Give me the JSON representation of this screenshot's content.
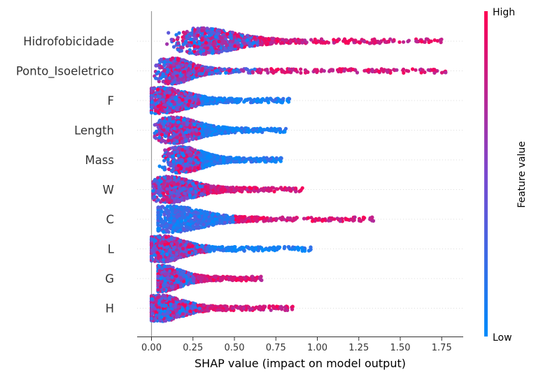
{
  "chart_data": {
    "type": "scatter",
    "subtype": "shap-beeswarm",
    "xlabel": "SHAP value (impact on model output)",
    "xlim": [
      -0.08,
      1.88
    ],
    "xticks": [
      "0.00",
      "0.25",
      "0.50",
      "0.75",
      "1.00",
      "1.25",
      "1.50",
      "1.75"
    ],
    "grid": false,
    "features": [
      {
        "name": "Hidrofobicidade",
        "min": 0.05,
        "max": 1.75,
        "mode": 0.3,
        "spread": 0.24,
        "tail_max": 1.75,
        "tail_color": "high",
        "head_color": "mixed"
      },
      {
        "name": "Ponto_Isoeletrico",
        "min": 0.0,
        "max": 1.79,
        "mode": 0.12,
        "spread": 0.14,
        "tail_max": 1.79,
        "tail_color": "high",
        "head_color": "mixed"
      },
      {
        "name": "F",
        "min": 0.0,
        "max": 0.84,
        "mode": 0.06,
        "spread": 0.18,
        "tail_max": 0.84,
        "tail_color": "low",
        "head_color": "mixed"
      },
      {
        "name": "Length",
        "min": 0.02,
        "max": 0.81,
        "mode": 0.13,
        "spread": 0.18,
        "tail_max": 0.81,
        "tail_color": "low",
        "head_color": "mixed"
      },
      {
        "name": "Mass",
        "min": 0.03,
        "max": 0.79,
        "mode": 0.18,
        "spread": 0.15,
        "tail_max": 0.79,
        "tail_color": "low",
        "head_color": "mixed"
      },
      {
        "name": "W",
        "min": 0.01,
        "max": 0.91,
        "mode": 0.1,
        "spread": 0.18,
        "tail_max": 0.91,
        "tail_color": "high",
        "head_color": "mixed"
      },
      {
        "name": "C",
        "min": 0.04,
        "max": 1.35,
        "mode": 0.12,
        "spread": 0.22,
        "tail_max": 1.35,
        "tail_color": "high",
        "head_color": "low"
      },
      {
        "name": "L",
        "min": 0.0,
        "max": 0.97,
        "mode": 0.06,
        "spread": 0.16,
        "tail_max": 0.97,
        "tail_color": "low",
        "head_color": "mixed"
      },
      {
        "name": "G",
        "min": 0.04,
        "max": 0.67,
        "mode": 0.06,
        "spread": 0.14,
        "tail_max": 0.67,
        "tail_color": "high",
        "head_color": "mixed"
      },
      {
        "name": "H",
        "min": 0.0,
        "max": 0.86,
        "mode": 0.05,
        "spread": 0.16,
        "tail_max": 0.86,
        "tail_color": "high",
        "head_color": "mixed"
      }
    ],
    "colorbar": {
      "title": "Feature value",
      "high_label": "High",
      "low_label": "Low",
      "high_color": "#ff0052",
      "low_color": "#008bfb"
    }
  }
}
